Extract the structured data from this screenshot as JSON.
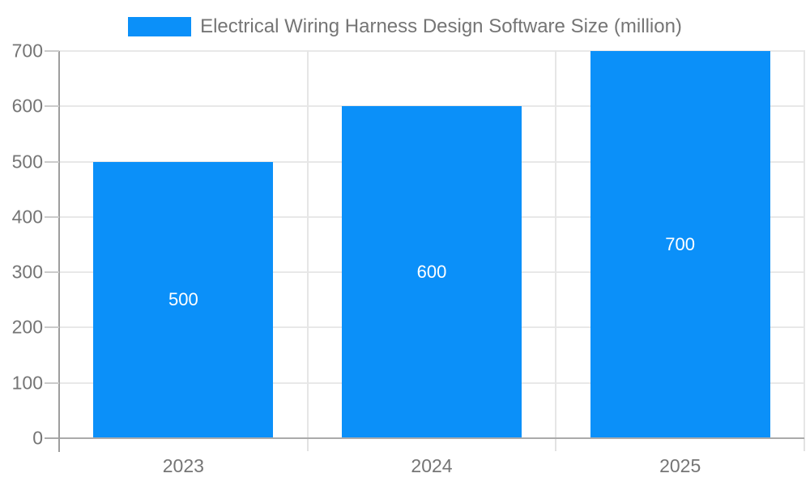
{
  "chart_data": {
    "type": "bar",
    "title": "Electrical Wiring Harness Design Software Size (million)",
    "categories": [
      "2023",
      "2024",
      "2025"
    ],
    "values": [
      500,
      600,
      700
    ],
    "bar_labels": [
      "500",
      "600",
      "700"
    ],
    "xlabel": "",
    "ylabel": "",
    "ylim": [
      0,
      700
    ],
    "yticks": [
      0,
      100,
      200,
      300,
      400,
      500,
      600,
      700
    ],
    "grid": true,
    "legend_position": "top-center",
    "colors": {
      "bar": "#0b90f9",
      "bar_label_text": "#ffffff",
      "legend_text": "#757575",
      "axis_label_text": "#757575",
      "gridline": "#e8e8e8",
      "category_separator": "#e6e6e6",
      "x_axis_line": "#ababab",
      "y_axis_line": "#9e9e9e",
      "y_tick": "#cbcbcb",
      "x_tick": "#e2e2e2",
      "background": "#ffffff"
    }
  }
}
